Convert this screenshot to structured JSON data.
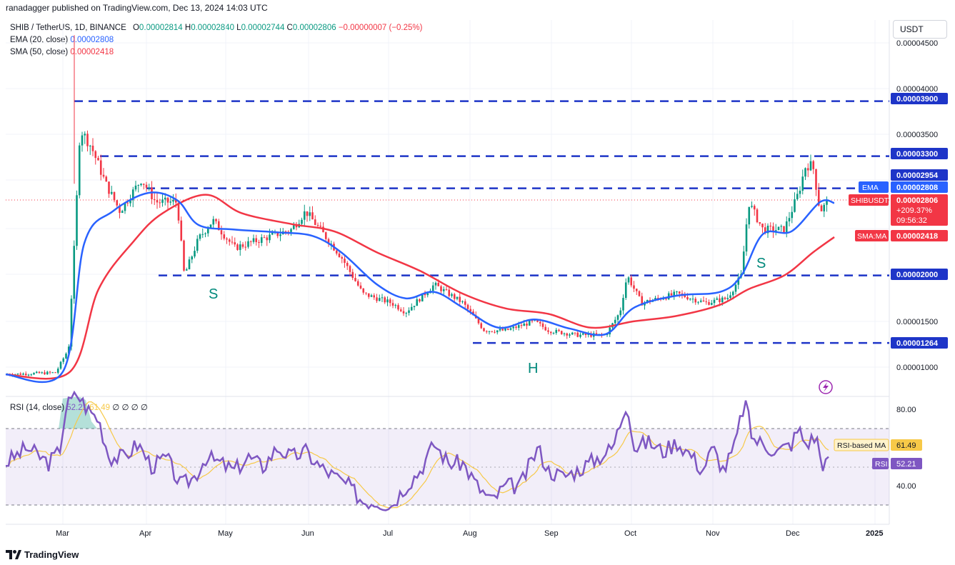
{
  "header": {
    "caption": "ranadagger published on TradingView.com, Dec 13, 2024 14:03 UTC"
  },
  "legend": {
    "symbol": "SHIB / TetherUS, 1D, BINANCE",
    "o_label": "O",
    "o_value": "0.00002814",
    "h_label": "H",
    "h_value": "0.00002840",
    "l_label": "L",
    "l_value": "0.00002744",
    "c_label": "C",
    "c_value": "0.00002806",
    "change": "−0.00000007 (−0.25%)",
    "ema_label": "EMA (20, close)",
    "ema_value": "0.00002808",
    "sma_label": "SMA (50, close)",
    "sma_value": "0.00002418"
  },
  "rsi_legend": {
    "label": "RSI (14, close)",
    "rsi_value": "52.21",
    "ma_value": "61.49",
    "extras": "∅ ∅ ∅ ∅"
  },
  "toolbar": {
    "currency": "USDT"
  },
  "price_axis": {
    "ticks": [
      "0.00004500",
      "0.00004000",
      "0.00003500",
      "0.00001500",
      "0.00001000"
    ],
    "badges": {
      "l3900": "0.00003900",
      "l3300": "0.00003300",
      "l2954": "0.00002954",
      "ema_tag": "EMA",
      "ema_val": "0.00002808",
      "sym_tag": "SHIBUSDT",
      "sym_val": "0.00002806",
      "sym_pct": "+209.37%",
      "sym_time": "09:56:32",
      "sma_tag": "SMA:MA",
      "sma_val": "0.00002418",
      "l2000": "0.00002000",
      "l1264": "0.00001264"
    }
  },
  "rsi_axis": {
    "ticks": [
      "80.00",
      "40.00"
    ],
    "ma_tag": "RSI-based MA",
    "ma_val": "61.49",
    "rsi_tag": "RSI",
    "rsi_val": "52.21"
  },
  "time_axis": [
    "Mar",
    "Apr",
    "May",
    "Jun",
    "Jul",
    "Aug",
    "Sep",
    "Oct",
    "Nov",
    "Dec",
    "2025"
  ],
  "annotations": {
    "left_shoulder": "S",
    "head": "H",
    "right_shoulder": "S"
  },
  "footer": {
    "brand": "TradingView"
  },
  "colors": {
    "up": "#089981",
    "down": "#f23645",
    "ema": "#2962ff",
    "sma": "#f23645",
    "rsi": "#7e57c2",
    "rsi_ma": "#f7c948",
    "level": "#1e35c8",
    "band": "#7e57c2"
  },
  "chart_data": {
    "type": "candlestick",
    "symbol": "SHIB / TetherUS",
    "timeframe": "1D",
    "price_range": [
      8.5e-06,
      4.65e-05
    ],
    "horizontal_levels": [
      3.9e-05,
      3.3e-05,
      2.95e-05,
      2e-05,
      1.264e-05
    ],
    "ema_points": [
      [
        0,
        9.2e-06
      ],
      [
        80,
        9.5e-06
      ],
      [
        110,
        2.35e-05
      ],
      [
        150,
        2.7e-05
      ],
      [
        200,
        2.9e-05
      ],
      [
        240,
        2.82e-05
      ],
      [
        270,
        2.55e-05
      ],
      [
        320,
        2.5e-05
      ],
      [
        380,
        2.47e-05
      ],
      [
        430,
        2.43e-05
      ],
      [
        470,
        2.25e-05
      ],
      [
        520,
        1.9e-05
      ],
      [
        560,
        1.75e-05
      ],
      [
        600,
        1.82e-05
      ],
      [
        640,
        1.65e-05
      ],
      [
        690,
        1.43e-05
      ],
      [
        740,
        1.52e-05
      ],
      [
        790,
        1.42e-05
      ],
      [
        840,
        1.36e-05
      ],
      [
        880,
        1.65e-05
      ],
      [
        940,
        1.78e-05
      ],
      [
        1000,
        1.82e-05
      ],
      [
        1030,
        2e-05
      ],
      [
        1060,
        2.45e-05
      ],
      [
        1100,
        2.48e-05
      ],
      [
        1140,
        2.8e-05
      ],
      [
        1160,
        2.79e-05
      ]
    ],
    "sma_points": [
      [
        0,
        9.2e-06
      ],
      [
        90,
        9.5e-06
      ],
      [
        130,
        1.85e-05
      ],
      [
        180,
        2.38e-05
      ],
      [
        220,
        2.68e-05
      ],
      [
        280,
        2.88e-05
      ],
      [
        330,
        2.68e-05
      ],
      [
        400,
        2.56e-05
      ],
      [
        460,
        2.48e-05
      ],
      [
        520,
        2.25e-05
      ],
      [
        580,
        2.05e-05
      ],
      [
        640,
        1.8e-05
      ],
      [
        700,
        1.64e-05
      ],
      [
        760,
        1.58e-05
      ],
      [
        820,
        1.43e-05
      ],
      [
        880,
        1.5e-05
      ],
      [
        940,
        1.56e-05
      ],
      [
        1000,
        1.68e-05
      ],
      [
        1040,
        1.85e-05
      ],
      [
        1090,
        2e-05
      ],
      [
        1130,
        2.25e-05
      ],
      [
        1160,
        2.418e-05
      ]
    ],
    "rsi_range": [
      20,
      90
    ],
    "rsi_bands": [
      70,
      30
    ],
    "rsi_mid": 50
  }
}
